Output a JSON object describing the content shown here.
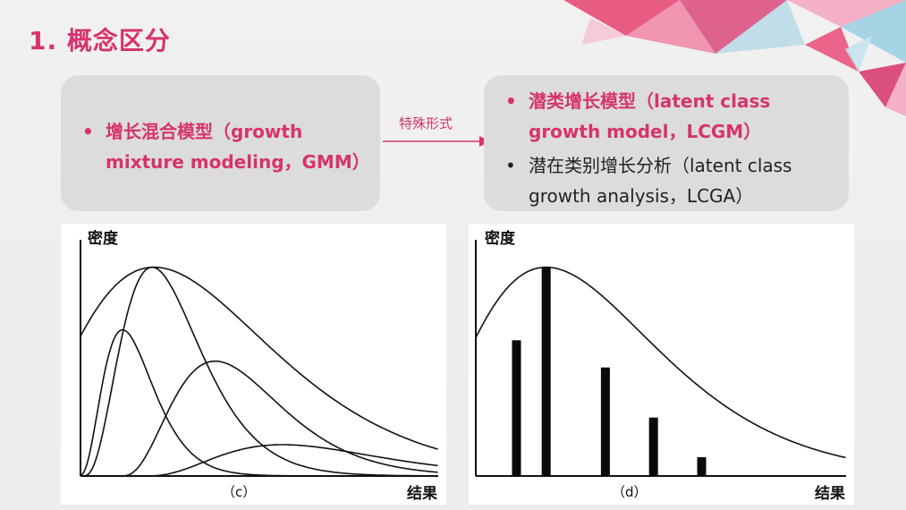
{
  "slide": {
    "title": "1. 概念区分",
    "accent_color": "#d6336c"
  },
  "left_box": {
    "bullets": [
      {
        "text": "增长混合模型（growth mixture modeling，GMM）"
      }
    ]
  },
  "arrow_label": "特殊形式",
  "right_box": {
    "bullets": [
      {
        "text": "潜类增长模型（latent class growth model，LCGM）"
      },
      {
        "text": "潜在类别增长分析（latent class growth analysis，LCGA）"
      }
    ]
  },
  "bullet_symbol": "•",
  "chart_data": [
    {
      "type": "line",
      "ylabel": "密度",
      "xlabel": "结果",
      "caption": "（c）",
      "series": [
        {
          "peak_x": 1.0,
          "peak_y": 0.7,
          "spread": 0.35
        },
        {
          "peak_x": 1.7,
          "peak_y": 1.0,
          "spread": 0.55
        },
        {
          "peak_x": 3.2,
          "peak_y": 0.55,
          "spread": 0.75
        },
        {
          "peak_x": 4.8,
          "peak_y": 0.15,
          "spread": 1.1
        }
      ],
      "envelope": {
        "peak_x": 1.75,
        "peak_y": 1.0
      }
    },
    {
      "type": "bar",
      "ylabel": "密度",
      "xlabel": "结果",
      "caption": "（d）",
      "values": [
        0.65,
        1.0,
        0.52,
        0.28,
        0.09
      ],
      "x": [
        1.1,
        1.9,
        3.5,
        4.8,
        6.1
      ],
      "envelope": {
        "peak_x": 1.9,
        "peak_y": 1.0
      }
    }
  ]
}
